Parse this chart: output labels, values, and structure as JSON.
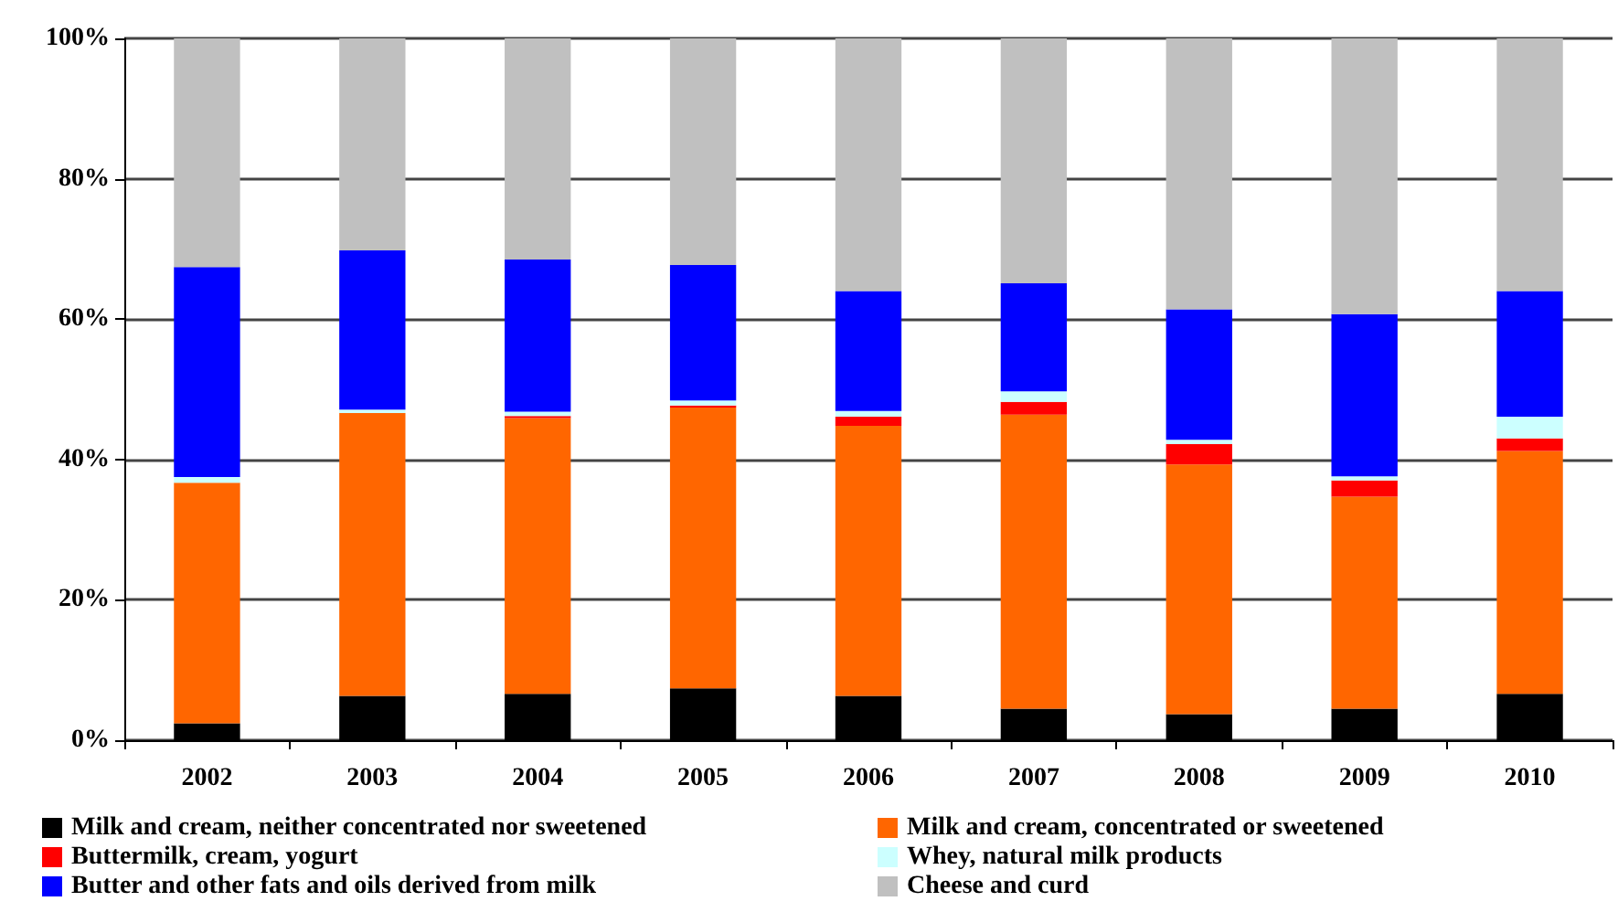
{
  "chart_data": {
    "type": "bar",
    "stacked": true,
    "categories": [
      "2002",
      "2003",
      "2004",
      "2005",
      "2006",
      "2007",
      "2008",
      "2009",
      "2010"
    ],
    "series": [
      {
        "name": "Milk and cream, neither concentrated nor sweetened",
        "color": "#000000",
        "values": [
          2.4,
          6.3,
          6.6,
          7.4,
          6.3,
          4.5,
          3.7,
          4.5,
          6.6
        ]
      },
      {
        "name": "Milk and cream, concentrated or sweetened",
        "color": "#ff6600",
        "values": [
          34.3,
          40.3,
          39.3,
          40.0,
          38.5,
          41.9,
          35.6,
          30.2,
          34.6
        ]
      },
      {
        "name": "Buttermilk, cream, yogurt",
        "color": "#ff0000",
        "values": [
          0,
          0,
          0.3,
          0.3,
          1.3,
          1.8,
          2.9,
          2.3,
          1.8
        ]
      },
      {
        "name": "Whey, natural milk products",
        "color": "#ccffff",
        "values": [
          0.8,
          0.5,
          0.6,
          0.7,
          0.8,
          1.5,
          0.6,
          0.6,
          3.1
        ]
      },
      {
        "name": "Butter and other fats and oils derived from milk",
        "color": "#0000ff",
        "values": [
          29.9,
          22.7,
          21.7,
          19.3,
          17.1,
          15.4,
          18.6,
          23.1,
          17.9
        ]
      },
      {
        "name": "Cheese and curd",
        "color": "#c0c0c0",
        "values": [
          32.6,
          30.2,
          31.5,
          32.3,
          36.0,
          34.9,
          38.6,
          39.3,
          36.0
        ]
      }
    ],
    "ylim": [
      0,
      100
    ],
    "yticks": [
      {
        "value": 0,
        "label": "0%"
      },
      {
        "value": 20,
        "label": "20%"
      },
      {
        "value": 40,
        "label": "40%"
      },
      {
        "value": 60,
        "label": "60%"
      },
      {
        "value": 80,
        "label": "80%"
      },
      {
        "value": 100,
        "label": "100%"
      }
    ],
    "grid": "y",
    "legend": "bottom"
  }
}
